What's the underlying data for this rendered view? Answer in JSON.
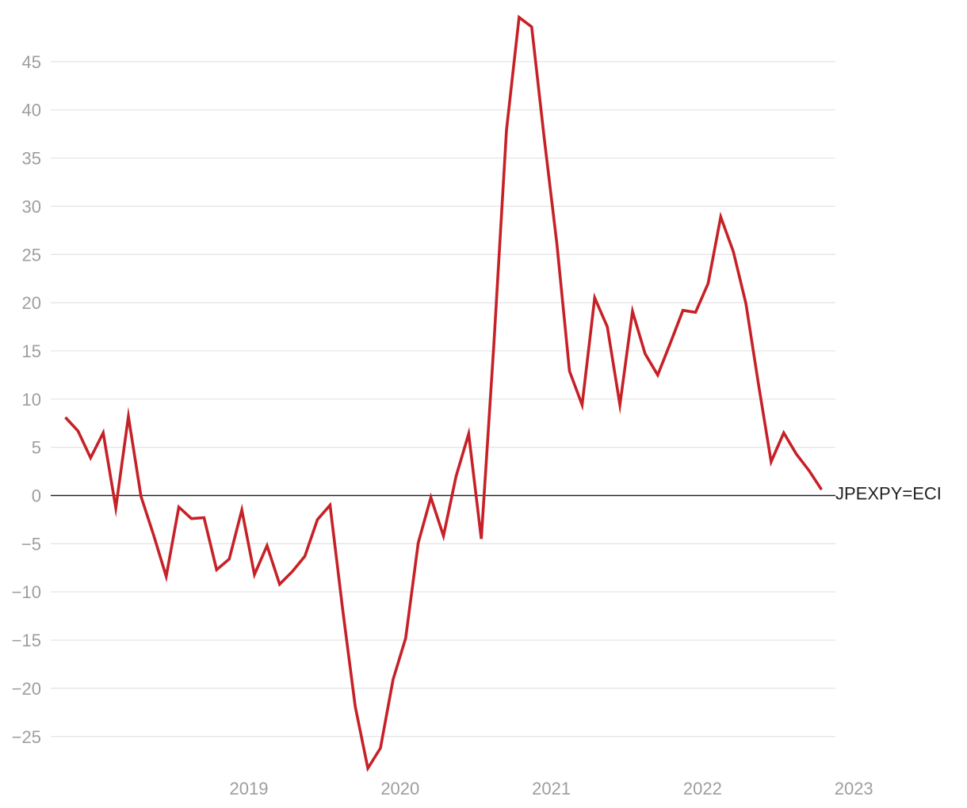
{
  "chart_data": {
    "type": "line",
    "title": "",
    "xlabel": "",
    "ylabel": "",
    "xlim": [
      "2018-04",
      "2023-05"
    ],
    "ylim": [
      -28,
      50
    ],
    "grid": true,
    "zero_line": true,
    "x_ticks": [
      "2019",
      "2020",
      "2021",
      "2022",
      "2023"
    ],
    "y_ticks": [
      45,
      40,
      35,
      30,
      25,
      20,
      15,
      10,
      5,
      0,
      -5,
      -10,
      -15,
      -20,
      -25
    ],
    "y_tick_labels": [
      "45",
      "40",
      "35",
      "30",
      "25",
      "20",
      "15",
      "10",
      "5",
      "0",
      "−5",
      "−10",
      "−15",
      "−20",
      "−25"
    ],
    "series": [
      {
        "name": "JPEXPY=ECI",
        "color": "#c62127",
        "points": [
          [
            "2018-04",
            8.1
          ],
          [
            "2018-05",
            6.7
          ],
          [
            "2018-06",
            3.9
          ],
          [
            "2018-07",
            6.5
          ],
          [
            "2018-08",
            -1.3
          ],
          [
            "2018-09",
            8.2
          ],
          [
            "2018-10",
            -0.1
          ],
          [
            "2018-11",
            -4.1
          ],
          [
            "2018-12",
            -8.4
          ],
          [
            "2019-01",
            -1.2
          ],
          [
            "2019-02",
            -2.4
          ],
          [
            "2019-03",
            -2.3
          ],
          [
            "2019-04",
            -7.7
          ],
          [
            "2019-05",
            -6.6
          ],
          [
            "2019-06",
            -1.5
          ],
          [
            "2019-07",
            -8.2
          ],
          [
            "2019-08",
            -5.2
          ],
          [
            "2019-09",
            -9.2
          ],
          [
            "2019-10",
            -7.9
          ],
          [
            "2019-11",
            -6.3
          ],
          [
            "2019-12",
            -2.5
          ],
          [
            "2020-01",
            -1.0
          ],
          [
            "2020-02",
            -11.8
          ],
          [
            "2020-03",
            -21.9
          ],
          [
            "2020-04",
            -28.3
          ],
          [
            "2020-05",
            -26.2
          ],
          [
            "2020-06",
            -19.1
          ],
          [
            "2020-07",
            -14.8
          ],
          [
            "2020-08",
            -4.9
          ],
          [
            "2020-09",
            -0.2
          ],
          [
            "2020-10",
            -4.2
          ],
          [
            "2020-11",
            2.0
          ],
          [
            "2020-12",
            6.4
          ],
          [
            "2021-01",
            -4.5
          ],
          [
            "2021-02",
            15.7
          ],
          [
            "2021-03",
            37.9
          ],
          [
            "2021-04",
            49.6
          ],
          [
            "2021-05",
            48.6
          ],
          [
            "2021-06",
            37.0
          ],
          [
            "2021-07",
            26.1
          ],
          [
            "2021-08",
            12.9
          ],
          [
            "2021-09",
            9.4
          ],
          [
            "2021-10",
            20.5
          ],
          [
            "2021-11",
            17.5
          ],
          [
            "2021-12",
            9.4
          ],
          [
            "2022-01",
            19.1
          ],
          [
            "2022-02",
            14.7
          ],
          [
            "2022-03",
            12.5
          ],
          [
            "2022-04",
            15.8
          ],
          [
            "2022-05",
            19.2
          ],
          [
            "2022-06",
            19.0
          ],
          [
            "2022-07",
            22.0
          ],
          [
            "2022-08",
            28.9
          ],
          [
            "2022-09",
            25.3
          ],
          [
            "2022-10",
            19.9
          ],
          [
            "2022-11",
            11.5
          ],
          [
            "2022-12",
            3.5
          ],
          [
            "2023-01",
            6.5
          ],
          [
            "2023-02",
            4.3
          ],
          [
            "2023-03",
            2.6
          ],
          [
            "2023-04",
            0.6
          ]
        ]
      }
    ]
  }
}
